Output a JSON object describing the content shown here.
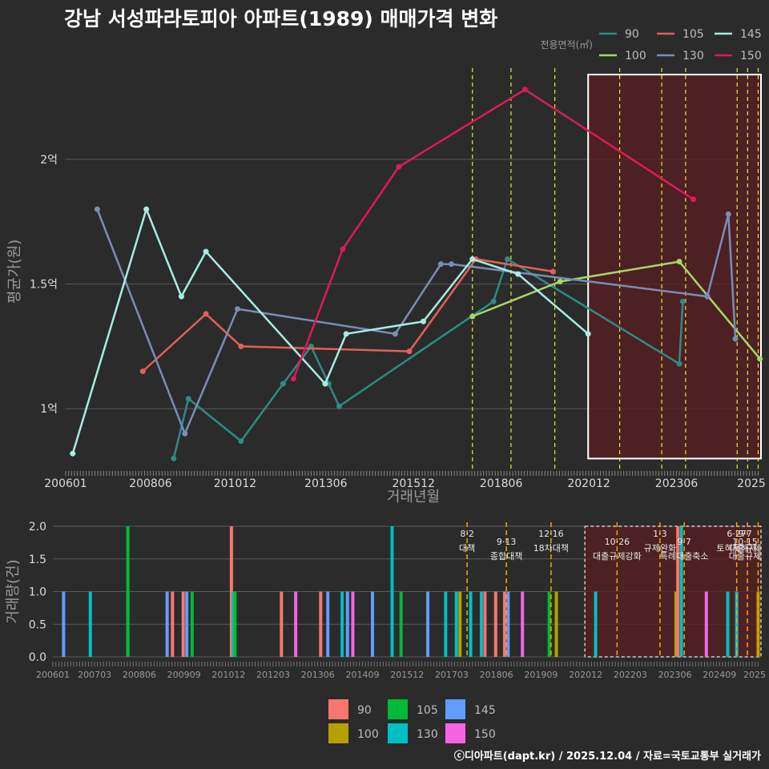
{
  "title": "강남 서성파라토피아 아파트(1989) 매매가격 변화",
  "credit": "ⓒ디아파트(dapt.kr) / 2025.12.04 / 자료=국토교통부 실거래가",
  "colors": {
    "background": "#2b2b2b",
    "grid": "#5a5a5a",
    "highlight_fill": "#5a1e22",
    "policy_line": "#e8e83c",
    "policy_line_bottom": "#f0a800"
  },
  "chart_data": [
    {
      "type": "line",
      "title": "강남 서성파라토피아 아파트(1989) 매매가격 변화",
      "xlabel": "거래년월",
      "ylabel": "평균가(원)",
      "xlim": [
        2006.0,
        2025.83
      ],
      "ylim": [
        0.75,
        2.35
      ],
      "y_unit": "억",
      "x_ticks": [
        {
          "x": 2006.0,
          "label": "200601"
        },
        {
          "x": 2008.42,
          "label": "200806"
        },
        {
          "x": 2010.83,
          "label": "201012"
        },
        {
          "x": 2013.42,
          "label": "201306"
        },
        {
          "x": 2015.92,
          "label": "201512"
        },
        {
          "x": 2018.42,
          "label": "201806"
        },
        {
          "x": 2020.92,
          "label": "202012"
        },
        {
          "x": 2023.42,
          "label": "202306"
        },
        {
          "x": 2025.92,
          "label": "2025"
        }
      ],
      "y_ticks": [
        {
          "y": 1.0,
          "label": "1억"
        },
        {
          "y": 1.5,
          "label": "1.5억"
        },
        {
          "y": 2.0,
          "label": "2억"
        }
      ],
      "legend_title": "전용면적(㎡)",
      "legend_position": "top-right",
      "highlight": {
        "x_start": 2020.9,
        "x_end": 2025.83,
        "y_start": 0.8,
        "y_end": 2.34
      },
      "policy_lines_x": [
        2017.6,
        2018.7,
        2019.95,
        2021.8,
        2023.0,
        2023.68,
        2025.15,
        2025.45,
        2025.75
      ],
      "series": [
        {
          "name": "90",
          "color": "#2e8b86",
          "points": [
            [
              2009.08,
              0.8
            ],
            [
              2009.5,
              1.04
            ],
            [
              2011.0,
              0.87
            ],
            [
              2012.2,
              1.1
            ],
            [
              2013.0,
              1.25
            ],
            [
              2013.5,
              1.1
            ],
            [
              2013.8,
              1.01
            ],
            [
              2018.2,
              1.43
            ],
            [
              2018.6,
              1.6
            ],
            [
              2023.5,
              1.18
            ],
            [
              2023.6,
              1.43
            ]
          ]
        },
        {
          "name": "100",
          "color": "#a8d66a",
          "points": [
            [
              2017.6,
              1.37
            ],
            [
              2020.1,
              1.51
            ],
            [
              2023.5,
              1.59
            ],
            [
              2025.8,
              1.2
            ]
          ]
        },
        {
          "name": "105",
          "color": "#e0605a",
          "points": [
            [
              2008.2,
              1.15
            ],
            [
              2010.0,
              1.38
            ],
            [
              2011.0,
              1.25
            ],
            [
              2015.8,
              1.23
            ],
            [
              2017.7,
              1.6
            ],
            [
              2019.9,
              1.55
            ]
          ]
        },
        {
          "name": "130",
          "color": "#7a8db5",
          "points": [
            [
              2006.9,
              1.8
            ],
            [
              2009.4,
              0.9
            ],
            [
              2010.9,
              1.4
            ],
            [
              2015.4,
              1.3
            ],
            [
              2016.7,
              1.58
            ],
            [
              2017.0,
              1.58
            ],
            [
              2024.3,
              1.45
            ],
            [
              2024.9,
              1.78
            ],
            [
              2025.1,
              1.28
            ]
          ]
        },
        {
          "name": "145",
          "color": "#a8ece4",
          "points": [
            [
              2006.2,
              0.82
            ],
            [
              2008.3,
              1.8
            ],
            [
              2009.3,
              1.45
            ],
            [
              2010.0,
              1.63
            ],
            [
              2013.4,
              1.1
            ],
            [
              2014.0,
              1.3
            ],
            [
              2016.2,
              1.35
            ],
            [
              2017.6,
              1.6
            ],
            [
              2018.9,
              1.54
            ],
            [
              2020.9,
              1.3
            ]
          ]
        },
        {
          "name": "150",
          "color": "#dc1a5a",
          "points": [
            [
              2012.5,
              1.12
            ],
            [
              2013.9,
              1.64
            ],
            [
              2015.5,
              1.97
            ],
            [
              2019.1,
              2.28
            ],
            [
              2023.9,
              1.84
            ]
          ]
        }
      ]
    },
    {
      "type": "bar",
      "title": "",
      "xlabel": "",
      "ylabel": "거래량(건)",
      "xlim": [
        2006.0,
        2025.83
      ],
      "ylim": [
        0,
        2.0
      ],
      "x_ticks": [
        {
          "x": 2006.0,
          "label": "200601"
        },
        {
          "x": 2007.17,
          "label": "200703"
        },
        {
          "x": 2008.42,
          "label": "200806"
        },
        {
          "x": 2009.67,
          "label": "200909"
        },
        {
          "x": 2010.92,
          "label": "201012"
        },
        {
          "x": 2012.17,
          "label": "201203"
        },
        {
          "x": 2013.42,
          "label": "201306"
        },
        {
          "x": 2014.67,
          "label": "201409"
        },
        {
          "x": 2015.92,
          "label": "201512"
        },
        {
          "x": 2017.17,
          "label": "201703"
        },
        {
          "x": 2018.42,
          "label": "201806"
        },
        {
          "x": 2019.67,
          "label": "201909"
        },
        {
          "x": 2020.92,
          "label": "202012"
        },
        {
          "x": 2022.17,
          "label": "202203"
        },
        {
          "x": 2023.42,
          "label": "202306"
        },
        {
          "x": 2024.67,
          "label": "202409"
        },
        {
          "x": 2025.92,
          "label": "2025"
        }
      ],
      "y_ticks": [
        {
          "y": 0.0,
          "label": "0.0"
        },
        {
          "y": 0.5,
          "label": "0.5"
        },
        {
          "y": 1.0,
          "label": "1.0"
        },
        {
          "y": 1.5,
          "label": "1.5"
        },
        {
          "y": 2.0,
          "label": "2.0"
        }
      ],
      "legend_position": "bottom",
      "legend": [
        {
          "name": "90",
          "color": "#f8766d"
        },
        {
          "name": "100",
          "color": "#b79f00"
        },
        {
          "name": "105",
          "color": "#00ba38"
        },
        {
          "name": "130",
          "color": "#00bfc4"
        },
        {
          "name": "145",
          "color": "#619cff"
        },
        {
          "name": "150",
          "color": "#f564e3"
        }
      ],
      "highlight": {
        "x_start": 2020.9,
        "x_end": 2025.83,
        "y_start": 0,
        "y_end": 2.0
      },
      "policy_lines_x": [
        2017.6,
        2018.7,
        2019.95,
        2021.8,
        2023.0,
        2023.68,
        2025.15,
        2025.45,
        2025.75
      ],
      "policy_labels": [
        {
          "x": 2017.6,
          "date": "8·2",
          "name": "대책"
        },
        {
          "x": 2018.7,
          "date": "9·13",
          "name": "종합대책"
        },
        {
          "x": 2019.95,
          "date": "12·16",
          "name": "18차대책"
        },
        {
          "x": 2021.8,
          "date": "10·26",
          "name": "대출규제강화"
        },
        {
          "x": 2023.0,
          "date": "1·3",
          "name": "규제완화"
        },
        {
          "x": 2023.68,
          "date": "9·7",
          "name": "특례대출축소"
        },
        {
          "x": 2025.15,
          "date": "6·27",
          "name": "토허제해제"
        },
        {
          "x": 2025.45,
          "date": "10·15",
          "name": "대출규제"
        },
        {
          "x": 2025.75,
          "date": "9·7",
          "name": "대출규제"
        }
      ],
      "bars": [
        {
          "x": 2006.3,
          "series": "145",
          "value": 1
        },
        {
          "x": 2007.05,
          "series": "130",
          "value": 1
        },
        {
          "x": 2008.1,
          "series": "145",
          "value": 1
        },
        {
          "x": 2008.1,
          "series": "105",
          "value": 2
        },
        {
          "x": 2009.2,
          "series": "145",
          "value": 1
        },
        {
          "x": 2009.35,
          "series": "90",
          "value": 1
        },
        {
          "x": 2009.65,
          "series": "90",
          "value": 1
        },
        {
          "x": 2009.75,
          "series": "145",
          "value": 1
        },
        {
          "x": 2009.9,
          "series": "105",
          "value": 1
        },
        {
          "x": 2011.0,
          "series": "90",
          "value": 2
        },
        {
          "x": 2011.05,
          "series": "130",
          "value": 1
        },
        {
          "x": 2011.1,
          "series": "105",
          "value": 1
        },
        {
          "x": 2012.4,
          "series": "90",
          "value": 1
        },
        {
          "x": 2012.8,
          "series": "150",
          "value": 1
        },
        {
          "x": 2013.5,
          "series": "90",
          "value": 1
        },
        {
          "x": 2013.7,
          "series": "145",
          "value": 1
        },
        {
          "x": 2014.1,
          "series": "130",
          "value": 1
        },
        {
          "x": 2014.25,
          "series": "145",
          "value": 1
        },
        {
          "x": 2014.4,
          "series": "150",
          "value": 1
        },
        {
          "x": 2014.95,
          "series": "145",
          "value": 1
        },
        {
          "x": 2015.5,
          "series": "130",
          "value": 2
        },
        {
          "x": 2015.75,
          "series": "105",
          "value": 1
        },
        {
          "x": 2016.5,
          "series": "145",
          "value": 1
        },
        {
          "x": 2017.0,
          "series": "130",
          "value": 1
        },
        {
          "x": 2017.3,
          "series": "130",
          "value": 1
        },
        {
          "x": 2017.4,
          "series": "100",
          "value": 1
        },
        {
          "x": 2017.7,
          "series": "130",
          "value": 1
        },
        {
          "x": 2018.0,
          "series": "130",
          "value": 1
        },
        {
          "x": 2018.1,
          "series": "90",
          "value": 1
        },
        {
          "x": 2018.4,
          "series": "90",
          "value": 1
        },
        {
          "x": 2018.65,
          "series": "90",
          "value": 1
        },
        {
          "x": 2018.75,
          "series": "145",
          "value": 1
        },
        {
          "x": 2019.15,
          "series": "150",
          "value": 1
        },
        {
          "x": 2019.9,
          "series": "105",
          "value": 1
        },
        {
          "x": 2020.1,
          "series": "100",
          "value": 1
        },
        {
          "x": 2021.2,
          "series": "130",
          "value": 1
        },
        {
          "x": 2023.45,
          "series": "100",
          "value": 1
        },
        {
          "x": 2023.5,
          "series": "90",
          "value": 2
        },
        {
          "x": 2023.6,
          "series": "130",
          "value": 2
        },
        {
          "x": 2024.3,
          "series": "150",
          "value": 1
        },
        {
          "x": 2024.9,
          "series": "130",
          "value": 1
        },
        {
          "x": 2025.15,
          "series": "130",
          "value": 1
        },
        {
          "x": 2025.75,
          "series": "100",
          "value": 1
        }
      ]
    }
  ]
}
